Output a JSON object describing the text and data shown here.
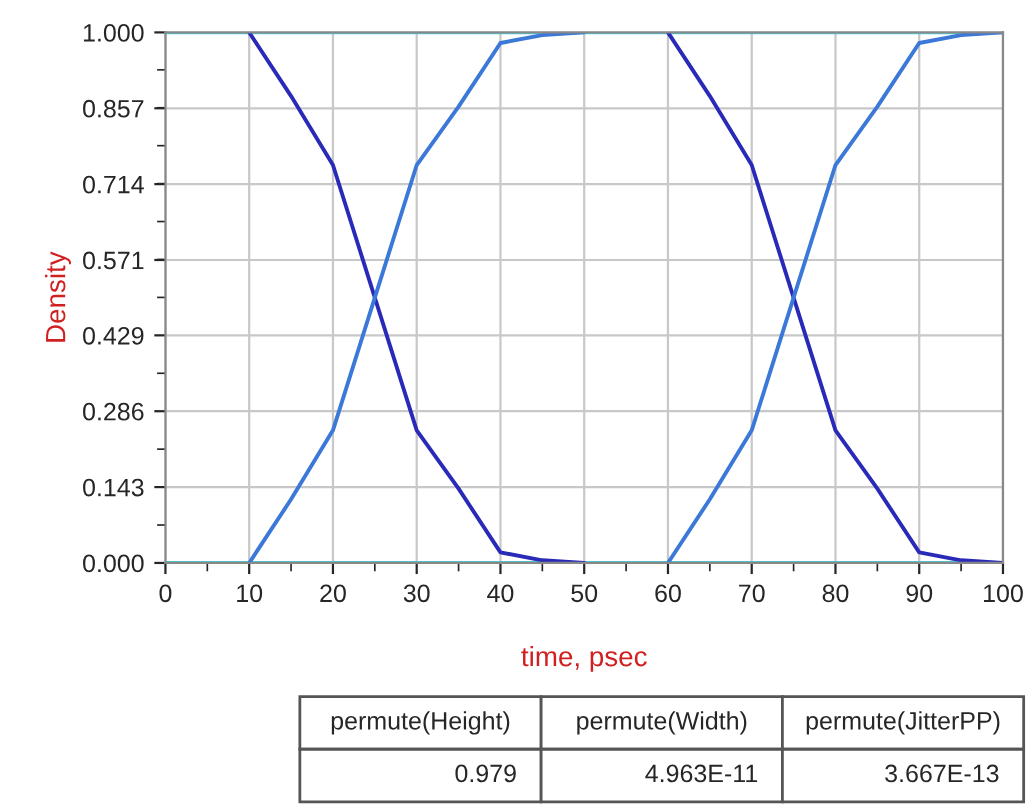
{
  "chart_data": {
    "type": "line",
    "xlabel": "time, psec",
    "ylabel": "Density",
    "xlim": [
      0,
      100
    ],
    "xticks": [
      0,
      10,
      20,
      30,
      40,
      50,
      60,
      70,
      80,
      90,
      100
    ],
    "ylim": [
      0,
      1
    ],
    "yticks": [
      {
        "value": 0,
        "label": "0.000"
      },
      {
        "value": 0.143,
        "label": "0.143"
      },
      {
        "value": 0.286,
        "label": "0.286"
      },
      {
        "value": 0.429,
        "label": "0.429"
      },
      {
        "value": 0.571,
        "label": "0.571"
      },
      {
        "value": 0.714,
        "label": "0.714"
      },
      {
        "value": 0.857,
        "label": "0.857"
      },
      {
        "value": 1,
        "label": "1.000"
      }
    ],
    "grid": true,
    "legend": false,
    "marker": "none",
    "line_style": "solid",
    "series": [
      {
        "color": "#40d0e0",
        "x": [
          0,
          100
        ],
        "values": [
          1,
          1
        ]
      },
      {
        "color": "#40d0e0",
        "x": [
          0,
          100
        ],
        "values": [
          0,
          0
        ]
      },
      {
        "color": "#2a2ab8",
        "x": [
          10,
          15,
          20,
          25,
          30,
          35,
          40,
          45,
          50
        ],
        "values": [
          1,
          0.88,
          0.75,
          0.5,
          0.25,
          0.14,
          0.02,
          0.005,
          0
        ]
      },
      {
        "color": "#3b78d8",
        "x": [
          10,
          15,
          20,
          25,
          30,
          35,
          40,
          45,
          50
        ],
        "values": [
          0,
          0.12,
          0.25,
          0.5,
          0.75,
          0.86,
          0.98,
          0.995,
          1
        ]
      },
      {
        "color": "#2a2ab8",
        "x": [
          60,
          65,
          70,
          75,
          80,
          85,
          90,
          95,
          100
        ],
        "values": [
          1,
          0.88,
          0.75,
          0.5,
          0.25,
          0.14,
          0.02,
          0.005,
          0
        ]
      },
      {
        "color": "#3b78d8",
        "x": [
          60,
          65,
          70,
          75,
          80,
          85,
          90,
          95,
          100
        ],
        "values": [
          0,
          0.12,
          0.25,
          0.5,
          0.75,
          0.86,
          0.98,
          0.995,
          1
        ]
      }
    ],
    "annotations": [
      "permute(Height)",
      "permute(Width)",
      "permute(JitterPP)",
      "0.979",
      "4.963E-11",
      "3.667E-13"
    ]
  }
}
